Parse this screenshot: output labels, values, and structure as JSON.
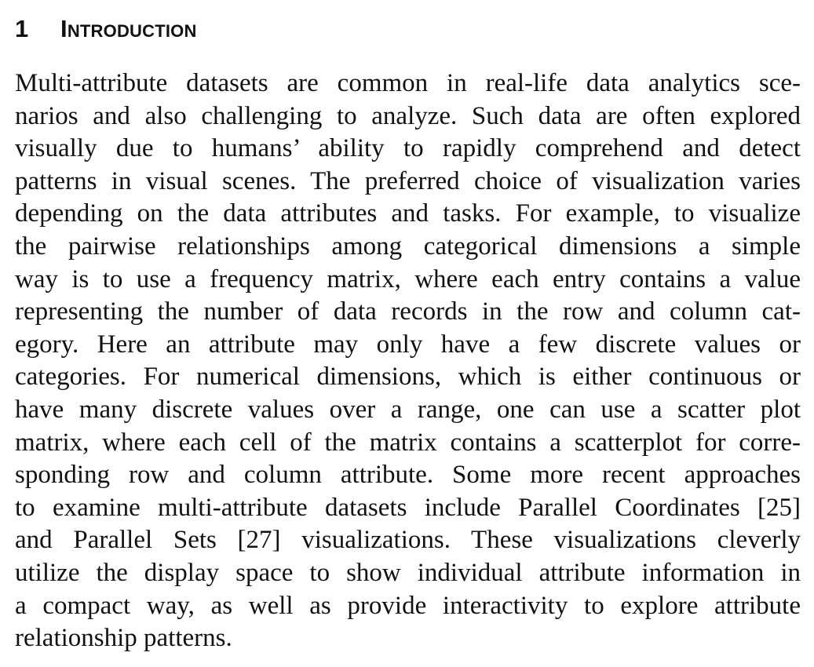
{
  "section": {
    "number": "1",
    "title": "Introduction"
  },
  "paragraph": {
    "lines": [
      "Multi-attribute datasets are common in real-life data analytics sce-",
      "narios and also challenging to analyze. Such data are often explored",
      "visually due to humans’ ability to rapidly comprehend and detect",
      "patterns in visual scenes. The preferred choice of visualization varies",
      "depending on the data attributes and tasks. For example, to visualize",
      "the pairwise relationships among categorical dimensions a simple",
      "way is to use a frequency matrix, where each entry contains a value",
      "representing the number of data records in the row and column cat-",
      "egory.  Here an attribute may only have a few discrete values or",
      "categories. For numerical dimensions, which is either continuous or",
      "have many discrete values over a range, one can use a scatter plot",
      "matrix, where each cell of the matrix contains a scatterplot for corre-",
      "sponding row and column attribute. Some more recent approaches",
      "to examine multi-attribute datasets include Parallel Coordinates [25]",
      "and Parallel Sets [27] visualizations. These visualizations cleverly",
      "utilize the display space to show individual attribute information in",
      "a compact way, as well as provide interactivity to explore attribute",
      "relationship patterns."
    ]
  }
}
